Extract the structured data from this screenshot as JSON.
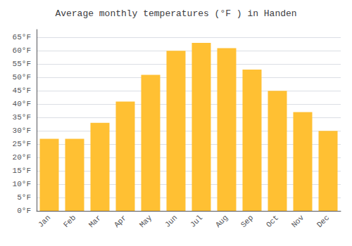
{
  "chart_data": {
    "type": "bar",
    "title": "Average monthly temperatures (°F ) in Handen",
    "categories": [
      "Jan",
      "Feb",
      "Mar",
      "Apr",
      "May",
      "Jun",
      "Jul",
      "Aug",
      "Sep",
      "Oct",
      "Nov",
      "Dec"
    ],
    "values": [
      27,
      27,
      33,
      41,
      51,
      60,
      63,
      61,
      53,
      45,
      37,
      30
    ],
    "color": "#FFC033",
    "ylim": [
      0,
      68
    ],
    "yticks": [
      {
        "value": 0,
        "label": "0°F"
      },
      {
        "value": 5,
        "label": "5°F"
      },
      {
        "value": 10,
        "label": "10°F"
      },
      {
        "value": 15,
        "label": "15°F"
      },
      {
        "value": 20,
        "label": "20°F"
      },
      {
        "value": 25,
        "label": "25°F"
      },
      {
        "value": 30,
        "label": "30°F"
      },
      {
        "value": 35,
        "label": "35°F"
      },
      {
        "value": 40,
        "label": "40°F"
      },
      {
        "value": 45,
        "label": "45°F"
      },
      {
        "value": 50,
        "label": "50°F"
      },
      {
        "value": 55,
        "label": "55°F"
      },
      {
        "value": 60,
        "label": "60°F"
      },
      {
        "value": 65,
        "label": "65°F"
      }
    ],
    "grid": true
  }
}
